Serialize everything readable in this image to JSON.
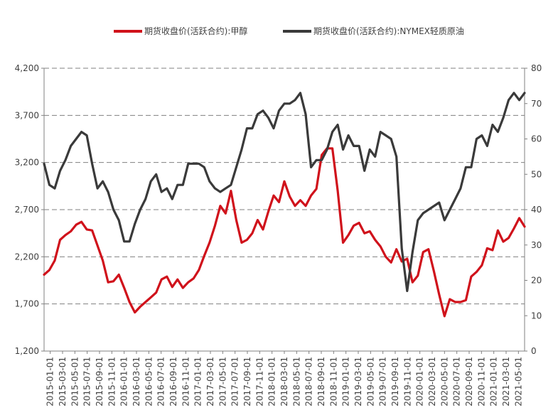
{
  "chart_data": {
    "type": "line",
    "title": "",
    "legend_position": "top",
    "left_axis": {
      "min": 1200,
      "max": 4200,
      "ticks": [
        1200,
        1700,
        2200,
        2700,
        3200,
        3700,
        4200
      ],
      "tick_labels": [
        "1,200",
        "1,700",
        "2,200",
        "2,700",
        "3,200",
        "3,700",
        "4,200"
      ]
    },
    "right_axis": {
      "min": 0,
      "max": 80,
      "ticks": [
        0,
        10,
        20,
        30,
        40,
        50,
        60,
        70,
        80
      ],
      "tick_labels": [
        "0",
        "10",
        "20",
        "30",
        "40",
        "50",
        "60",
        "70",
        "80"
      ]
    },
    "grid": true,
    "x_tick_labels": [
      "2015-01-01",
      "2015-03-01",
      "2015-05-01",
      "2015-07-01",
      "2015-09-01",
      "2015-11-01",
      "2016-01-01",
      "2016-03-01",
      "2016-05-01",
      "2016-07-01",
      "2016-09-01",
      "2016-11-01",
      "2017-01-01",
      "2017-03-01",
      "2017-05-01",
      "2017-07-01",
      "2017-09-01",
      "2017-11-01",
      "2018-01-01",
      "2018-03-01",
      "2018-05-01",
      "2018-07-01",
      "2018-09-01",
      "2018-11-01",
      "2019-01-01",
      "2019-03-01",
      "2019-05-01",
      "2019-07-01",
      "2019-09-01",
      "2019-11-01",
      "2020-01-01",
      "2020-03-01",
      "2020-05-01",
      "2020-07-01",
      "2020-09-01",
      "2020-11-01",
      "2021-01-01",
      "2021-03-01",
      "2021-05-01"
    ],
    "series": [
      {
        "name": "期货收盘价(活跃合约):甲醇",
        "axis": "left",
        "color": "#d0121b",
        "values": [
          2010,
          2060,
          2160,
          2380,
          2430,
          2470,
          2540,
          2570,
          2490,
          2480,
          2320,
          2160,
          1930,
          1940,
          2010,
          1870,
          1720,
          1610,
          1670,
          1720,
          1770,
          1820,
          1960,
          1990,
          1880,
          1960,
          1870,
          1930,
          1970,
          2060,
          2210,
          2350,
          2530,
          2740,
          2660,
          2900,
          2590,
          2350,
          2380,
          2450,
          2590,
          2490,
          2680,
          2850,
          2780,
          3000,
          2840,
          2740,
          2800,
          2740,
          2850,
          2920,
          3280,
          3350,
          3350,
          2900,
          2350,
          2430,
          2530,
          2560,
          2450,
          2470,
          2380,
          2310,
          2200,
          2140,
          2280,
          2150,
          2180,
          1930,
          2000,
          2250,
          2280,
          2050,
          1800,
          1570,
          1750,
          1720,
          1720,
          1740,
          1990,
          2040,
          2110,
          2290,
          2270,
          2480,
          2360,
          2400,
          2500,
          2610,
          2520
        ]
      },
      {
        "name": "期货收盘价(活跃合约):NYMEX轻质原油",
        "axis": "right",
        "color": "#3a3a3a",
        "values": [
          53,
          47,
          46,
          51,
          54,
          58,
          60,
          62,
          61,
          53,
          46,
          48,
          45,
          40,
          37,
          31,
          31,
          36,
          40,
          43,
          48,
          50,
          45,
          46,
          43,
          47,
          47,
          53,
          53,
          53,
          52,
          48,
          46,
          45,
          46,
          47,
          52,
          57,
          63,
          63,
          67,
          68,
          66,
          63,
          68,
          70,
          70,
          71,
          73,
          67,
          52,
          54,
          54,
          57,
          62,
          64,
          57,
          61,
          58,
          58,
          51,
          57,
          55,
          62,
          61,
          60,
          55,
          29,
          17,
          28,
          37,
          39,
          40,
          41,
          42,
          37,
          40,
          43,
          46,
          52,
          52,
          60,
          61,
          58,
          64,
          62,
          66,
          71,
          73,
          71,
          73
        ]
      }
    ]
  }
}
